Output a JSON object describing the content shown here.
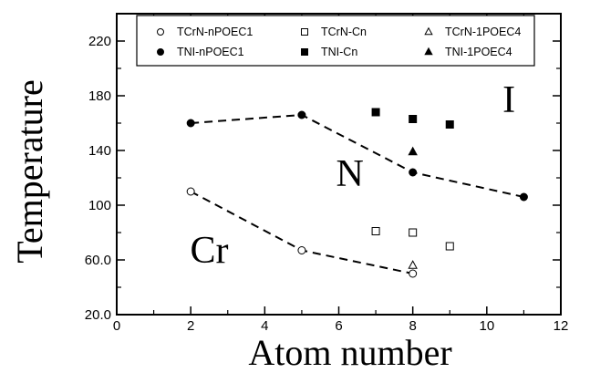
{
  "chart_data": {
    "type": "scatter",
    "xlabel": "Atom number",
    "ylabel": "Temperature",
    "xlim": [
      0,
      12
    ],
    "ylim": [
      20,
      240
    ],
    "x_ticks": [
      "0",
      "2",
      "4",
      "6",
      "8",
      "10",
      "12"
    ],
    "y_ticks": [
      "20.0",
      "60.0",
      "100",
      "140",
      "180",
      "220"
    ],
    "grid": false,
    "legend_position": "top",
    "series": [
      {
        "name": "TCrN-nPOEC1",
        "marker": "open-circle",
        "x": [
          2,
          5,
          8
        ],
        "y": [
          110,
          67,
          50
        ],
        "trend_line": true
      },
      {
        "name": "TNI-nPOEC1",
        "marker": "filled-circle",
        "x": [
          2,
          5,
          8,
          11
        ],
        "y": [
          160,
          166,
          124,
          106
        ],
        "trend_line": true
      },
      {
        "name": "TCrN-Cn",
        "marker": "open-square",
        "x": [
          7,
          8,
          9
        ],
        "y": [
          81,
          80,
          70
        ],
        "trend_line": false
      },
      {
        "name": "TNI-Cn",
        "marker": "filled-square",
        "x": [
          7,
          8,
          9
        ],
        "y": [
          168,
          163,
          159
        ],
        "trend_line": false
      },
      {
        "name": "TCrN-1POEC4",
        "marker": "open-triangle",
        "x": [
          8
        ],
        "y": [
          56
        ],
        "trend_line": false
      },
      {
        "name": "TNI-1POEC4",
        "marker": "filled-triangle",
        "x": [
          8
        ],
        "y": [
          139
        ],
        "trend_line": false
      }
    ],
    "annotations": [
      {
        "text": "I",
        "x": 10.6,
        "y": 168
      },
      {
        "text": "N",
        "x": 6.3,
        "y": 114
      },
      {
        "text": "Cr",
        "x": 2.5,
        "y": 58
      }
    ]
  }
}
